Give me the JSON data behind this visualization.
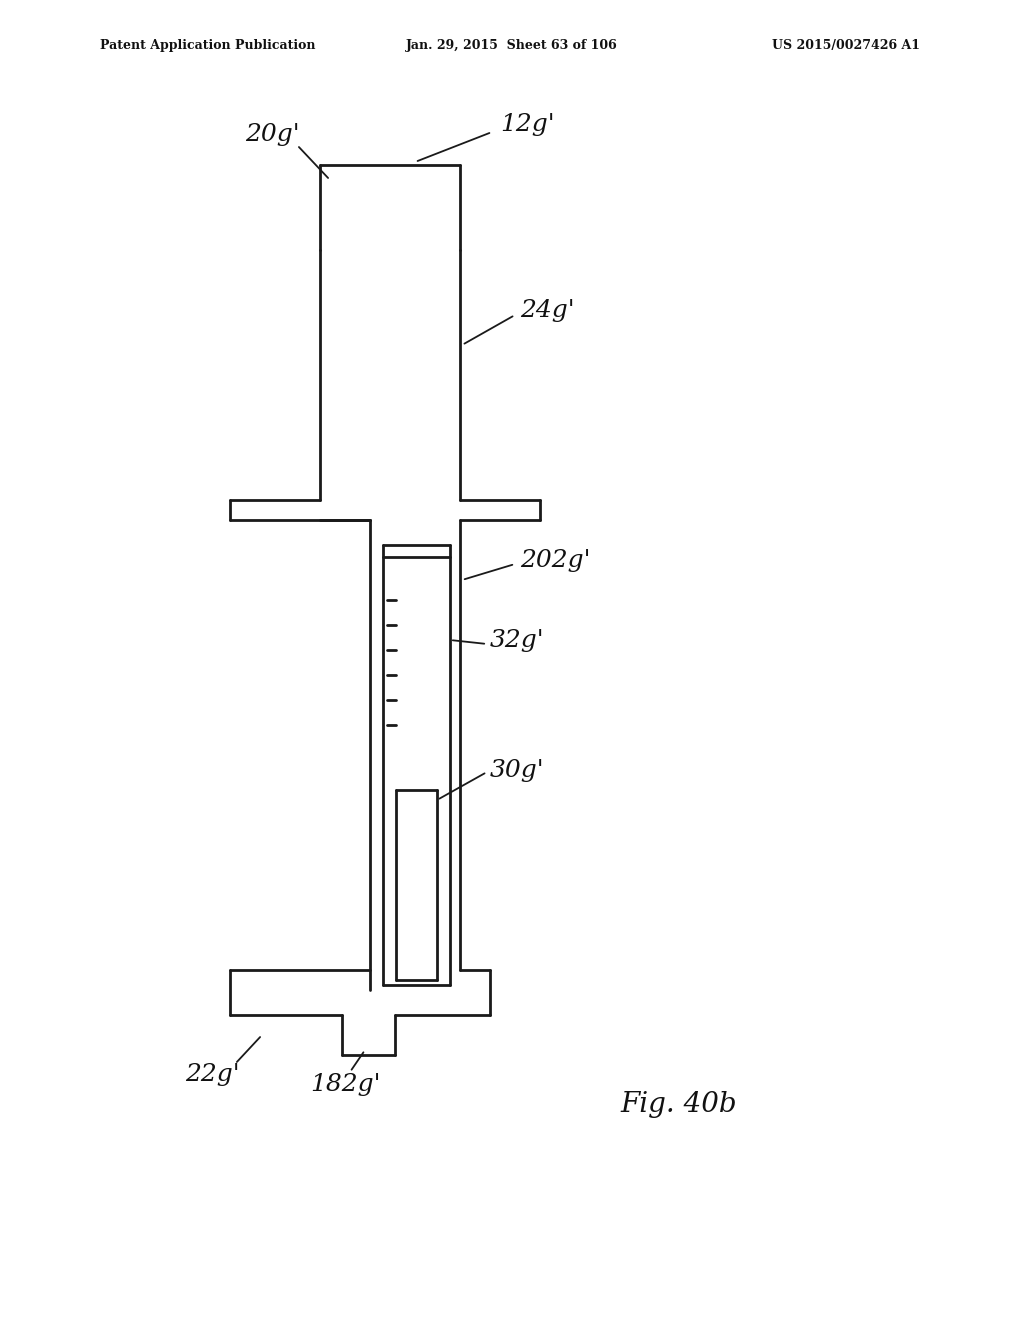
{
  "bg_color": "#ffffff",
  "line_color": "#1a1a1a",
  "line_width": 1.8,
  "header_left": "Patent Application Publication",
  "header_mid": "Jan. 29, 2015  Sheet 63 of 106",
  "header_right": "US 2015/0027426 A1",
  "figure_label": "Fig. 40b"
}
